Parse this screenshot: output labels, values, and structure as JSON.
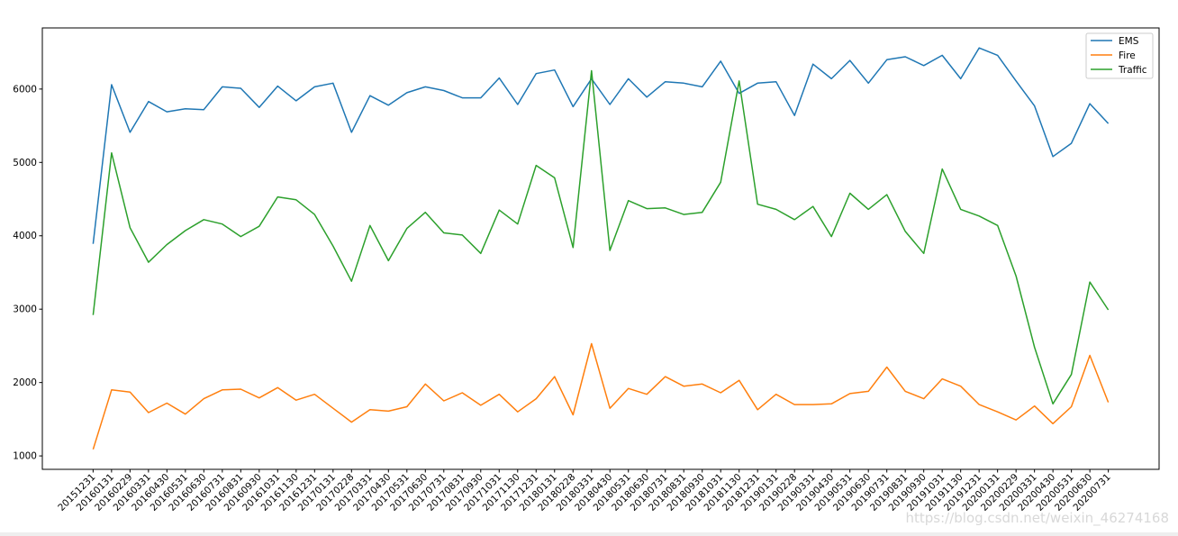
{
  "chart_data": {
    "type": "line",
    "title": "",
    "xlabel": "",
    "ylabel": "",
    "x": [
      "20151231",
      "20160131",
      "20160229",
      "20160331",
      "20160430",
      "20160531",
      "20160630",
      "20160731",
      "20160831",
      "20160930",
      "20161031",
      "20161130",
      "20161231",
      "20170131",
      "20170228",
      "20170331",
      "20170430",
      "20170531",
      "20170630",
      "20170731",
      "20170831",
      "20170930",
      "20171031",
      "20171130",
      "20171231",
      "20180131",
      "20180228",
      "20180331",
      "20180430",
      "20180531",
      "20180630",
      "20180731",
      "20180831",
      "20180930",
      "20181031",
      "20181130",
      "20181231",
      "20190131",
      "20190228",
      "20190331",
      "20190430",
      "20190531",
      "20190630",
      "20190731",
      "20190831",
      "20190930",
      "20191031",
      "20191130",
      "20191231",
      "20200131",
      "20200229",
      "20200331",
      "20200430",
      "20200531",
      "20200630",
      "20200731"
    ],
    "yticks": [
      1000,
      2000,
      3000,
      4000,
      5000,
      6000
    ],
    "ylim": [
      817,
      6833
    ],
    "grid": false,
    "legend_position": "top-right",
    "series": [
      {
        "name": "EMS",
        "color": "#1f77b4",
        "values": [
          3890,
          6060,
          5410,
          5830,
          5690,
          5730,
          5720,
          6030,
          6010,
          5750,
          6040,
          5840,
          6030,
          6080,
          5410,
          5910,
          5780,
          5950,
          6030,
          5980,
          5880,
          5880,
          6150,
          5790,
          6210,
          6260,
          5760,
          6140,
          5790,
          6140,
          5890,
          6100,
          6080,
          6030,
          6380,
          5940,
          6080,
          6100,
          5640,
          6340,
          6140,
          6390,
          6080,
          6400,
          6440,
          6320,
          6460,
          6140,
          6560,
          6460,
          6110,
          5770,
          5080,
          5260,
          5800,
          5530
        ]
      },
      {
        "name": "Fire",
        "color": "#ff7f0e",
        "values": [
          1090,
          1900,
          1870,
          1590,
          1720,
          1570,
          1780,
          1900,
          1910,
          1790,
          1930,
          1760,
          1840,
          1650,
          1460,
          1630,
          1610,
          1670,
          1980,
          1750,
          1860,
          1690,
          1840,
          1600,
          1780,
          2080,
          1560,
          2530,
          1650,
          1920,
          1840,
          2080,
          1950,
          1980,
          1860,
          2030,
          1630,
          1840,
          1700,
          1700,
          1710,
          1850,
          1880,
          2210,
          1880,
          1780,
          2050,
          1950,
          1700,
          1600,
          1490,
          1680,
          1440,
          1670,
          2370,
          1730
        ]
      },
      {
        "name": "Traffic",
        "color": "#2ca02c",
        "values": [
          2920,
          5130,
          4110,
          3640,
          3880,
          4070,
          4220,
          4160,
          3990,
          4130,
          4530,
          4490,
          4290,
          3860,
          3380,
          4140,
          3660,
          4100,
          4320,
          4040,
          4010,
          3760,
          4350,
          4160,
          4960,
          4790,
          3840,
          6250,
          3800,
          4480,
          4370,
          4380,
          4290,
          4320,
          4730,
          6110,
          4430,
          4360,
          4220,
          4400,
          3990,
          4580,
          4360,
          4560,
          4060,
          3760,
          4910,
          4360,
          4270,
          4140,
          3450,
          2480,
          1710,
          2110,
          3370,
          2990
        ]
      }
    ]
  },
  "watermark": "https://blog.csdn.net/weixin_46274168"
}
